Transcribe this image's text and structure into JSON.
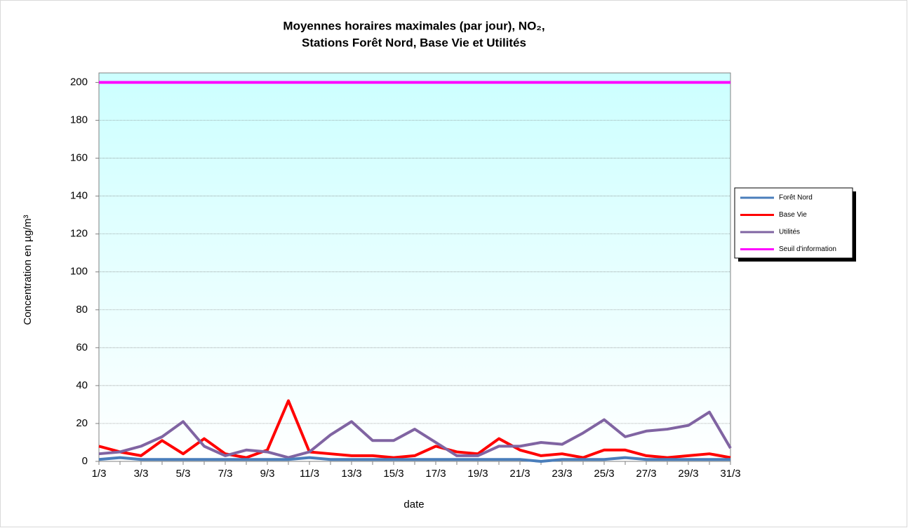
{
  "chart_data": {
    "type": "line",
    "title": [
      "Moyennes horaires maximales (par jour), NO₂,",
      "Stations Forêt Nord, Base Vie et Utilités"
    ],
    "x_label": "date",
    "y_label": "Concentration en µg/m³",
    "categories": [
      "1/3",
      null,
      "3/3",
      null,
      "5/3",
      null,
      "7/3",
      null,
      "9/3",
      null,
      "11/3",
      null,
      "13/3",
      null,
      "15/3",
      null,
      "17/3",
      null,
      "19/3",
      null,
      "21/3",
      null,
      "23/3",
      null,
      "25/3",
      null,
      "27/3",
      null,
      "29/3",
      null,
      "31/3"
    ],
    "series": [
      {
        "name": "Forêt Nord",
        "color": "#4a7ebb",
        "values": [
          1,
          2,
          1,
          1,
          1,
          1,
          1,
          1,
          1,
          1,
          2,
          1,
          1,
          1,
          1,
          1,
          1,
          1,
          1,
          1,
          1,
          0,
          1,
          1,
          1,
          2,
          1,
          1,
          1,
          1,
          1
        ]
      },
      {
        "name": "Base Vie",
        "color": "#ff0000",
        "values": [
          8,
          5,
          3,
          11,
          4,
          12,
          4,
          2,
          6,
          32,
          5,
          4,
          3,
          3,
          2,
          3,
          8,
          5,
          4,
          12,
          6,
          3,
          4,
          2,
          6,
          6,
          3,
          2,
          3,
          4,
          2
        ]
      },
      {
        "name": "Utilités",
        "color": "#8064a2",
        "values": [
          4,
          5,
          8,
          13,
          21,
          8,
          3,
          6,
          5,
          2,
          5,
          14,
          21,
          11,
          11,
          17,
          10,
          3,
          3,
          8,
          8,
          10,
          9,
          15,
          22,
          13,
          16,
          17,
          19,
          26,
          7
        ]
      },
      {
        "name": "Seuil d'information",
        "color": "#ff00ff",
        "values": [
          200,
          200,
          200,
          200,
          200,
          200,
          200,
          200,
          200,
          200,
          200,
          200,
          200,
          200,
          200,
          200,
          200,
          200,
          200,
          200,
          200,
          200,
          200,
          200,
          200,
          200,
          200,
          200,
          200,
          200,
          200
        ]
      }
    ],
    "ylim": [
      0,
      205
    ],
    "yticks": [
      0,
      20,
      40,
      60,
      80,
      100,
      120,
      140,
      160,
      180,
      200
    ],
    "grid": true,
    "legend": "right"
  }
}
